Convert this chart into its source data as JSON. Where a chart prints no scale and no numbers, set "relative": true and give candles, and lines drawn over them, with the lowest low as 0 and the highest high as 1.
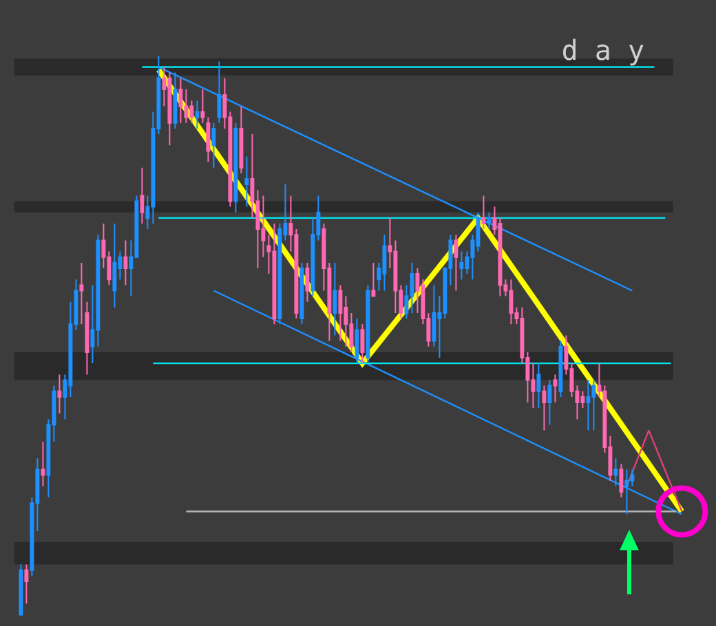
{
  "chart_data": {
    "type": "candlestick",
    "title": "d a y",
    "relative": true,
    "categories": [
      null,
      null,
      null,
      null,
      null,
      null,
      null,
      null,
      null,
      null,
      null,
      null,
      null,
      null,
      null,
      null,
      null,
      null,
      null,
      null,
      null,
      null,
      null,
      null,
      null,
      null,
      null,
      null,
      null,
      null,
      null,
      null,
      null,
      null,
      null,
      null,
      null,
      null,
      null,
      null,
      null,
      null,
      null,
      null,
      null,
      null,
      null,
      null,
      null,
      null,
      null,
      null,
      null,
      null,
      null,
      null,
      null,
      null,
      null,
      null,
      null,
      null,
      null,
      null,
      null,
      null,
      null,
      null,
      null,
      null,
      null,
      null,
      null,
      null,
      null,
      null,
      null,
      null,
      null,
      null,
      null,
      null,
      null,
      null,
      null,
      null,
      null,
      null,
      null,
      null,
      null,
      null,
      null,
      null,
      null,
      null,
      null,
      null,
      null,
      null,
      null,
      null,
      null,
      null,
      null,
      null,
      null,
      null,
      null,
      null,
      null,
      null,
      null,
      null,
      null,
      null,
      null,
      null,
      null,
      null,
      null
    ],
    "ohlc": [
      [
        0,
        0.09,
        0,
        0.08
      ],
      [
        0.08,
        0.09,
        0.02,
        0.06
      ],
      [
        0.08,
        0.21,
        0.07,
        0.2
      ],
      [
        0.2,
        0.28,
        0.15,
        0.26
      ],
      [
        0.26,
        0.31,
        0.23,
        0.25
      ],
      [
        0.25,
        0.35,
        0.21,
        0.34
      ],
      [
        0.34,
        0.41,
        0.31,
        0.4
      ],
      [
        0.4,
        0.43,
        0.36,
        0.39
      ],
      [
        0.39,
        0.43,
        0.35,
        0.42
      ],
      [
        0.41,
        0.56,
        0.39,
        0.52
      ],
      [
        0.52,
        0.6,
        0.51,
        0.58
      ],
      [
        0.59,
        0.63,
        0.52,
        0.58
      ],
      [
        0.54,
        0.56,
        0.43,
        0.47
      ],
      [
        0.48,
        0.59,
        0.45,
        0.51
      ],
      [
        0.51,
        0.68,
        0.48,
        0.67
      ],
      [
        0.67,
        0.7,
        0.62,
        0.64
      ],
      [
        0.64,
        0.65,
        0.59,
        0.6
      ],
      [
        0.58,
        0.7,
        0.55,
        0.63
      ],
      [
        0.62,
        0.65,
        0.6,
        0.64
      ],
      [
        0.64,
        0.67,
        0.59,
        0.62
      ],
      [
        0.62,
        0.67,
        0.57,
        0.64
      ],
      [
        0.64,
        0.75,
        0.64,
        0.74
      ],
      [
        0.75,
        0.8,
        0.7,
        0.72
      ],
      [
        0.71,
        0.75,
        0.69,
        0.73
      ],
      [
        0.73,
        0.9,
        0.7,
        0.87
      ],
      [
        0.87,
        1,
        0.86,
        0.96
      ],
      [
        0.96,
        0.98,
        0.91,
        0.94
      ],
      [
        0.96,
        0.97,
        0.84,
        0.88
      ],
      [
        0.88,
        0.97,
        0.87,
        0.94
      ],
      [
        0.94,
        0.96,
        0.88,
        0.91
      ],
      [
        0.91,
        0.94,
        0.88,
        0.89
      ],
      [
        0.91,
        0.92,
        0.88,
        0.89
      ],
      [
        0.89,
        0.92,
        0.87,
        0.9
      ],
      [
        0.9,
        0.94,
        0.88,
        0.89
      ],
      [
        0.88,
        0.89,
        0.81,
        0.83
      ],
      [
        0.84,
        0.88,
        0.8,
        0.87
      ],
      [
        0.89,
        0.99,
        0.88,
        0.93
      ],
      [
        0.93,
        0.96,
        0.87,
        0.89
      ],
      [
        0.89,
        0.9,
        0.73,
        0.74
      ],
      [
        0.74,
        0.88,
        0.72,
        0.87
      ],
      [
        0.87,
        0.91,
        0.79,
        0.8
      ],
      [
        0.77,
        0.82,
        0.73,
        0.78
      ],
      [
        0.78,
        0.86,
        0.71,
        0.74
      ],
      [
        0.74,
        0.76,
        0.62,
        0.69
      ],
      [
        0.69,
        0.75,
        0.64,
        0.67
      ],
      [
        0.66,
        0.68,
        0.61,
        0.65
      ],
      [
        0.65,
        0.7,
        0.52,
        0.53
      ],
      [
        0.53,
        0.7,
        0.52,
        0.69
      ],
      [
        0.68,
        0.77,
        0.67,
        0.7
      ],
      [
        0.7,
        0.75,
        0.65,
        0.68
      ],
      [
        0.68,
        0.69,
        0.53,
        0.54
      ],
      [
        0.53,
        0.63,
        0.52,
        0.62
      ],
      [
        0.62,
        0.63,
        0.56,
        0.58
      ],
      [
        0.58,
        0.71,
        0.57,
        0.68
      ],
      [
        0.68,
        0.75,
        0.67,
        0.72
      ],
      [
        0.69,
        0.7,
        0.58,
        0.62
      ],
      [
        0.62,
        0.63,
        0.49,
        0.54
      ],
      [
        0.54,
        0.63,
        0.5,
        0.58
      ],
      [
        0.58,
        0.59,
        0.49,
        0.54
      ],
      [
        0.55,
        0.57,
        0.48,
        0.52
      ],
      [
        0.52,
        0.54,
        0.47,
        0.48
      ],
      [
        0.46,
        0.53,
        0.45,
        0.51
      ],
      [
        0.51,
        0.52,
        0.45,
        0.47
      ],
      [
        0.46,
        0.59,
        0.45,
        0.58
      ],
      [
        0.58,
        0.63,
        0.57,
        0.57
      ],
      [
        0.6,
        0.63,
        0.58,
        0.62
      ],
      [
        0.61,
        0.68,
        0.58,
        0.66
      ],
      [
        0.66,
        0.71,
        0.62,
        0.65
      ],
      [
        0.65,
        0.67,
        0.54,
        0.58
      ],
      [
        0.58,
        0.59,
        0.53,
        0.54
      ],
      [
        0.54,
        0.59,
        0.53,
        0.57
      ],
      [
        0.57,
        0.63,
        0.54,
        0.61
      ],
      [
        0.61,
        0.62,
        0.54,
        0.58
      ],
      [
        0.59,
        0.6,
        0.52,
        0.53
      ],
      [
        0.53,
        0.54,
        0.48,
        0.49
      ],
      [
        0.49,
        0.59,
        0.48,
        0.54
      ],
      [
        0.53,
        0.57,
        0.46,
        0.54
      ],
      [
        0.54,
        0.62,
        0.53,
        0.62
      ],
      [
        0.62,
        0.68,
        0.59,
        0.67
      ],
      [
        0.67,
        0.68,
        0.58,
        0.64
      ],
      [
        0.62,
        0.65,
        0.6,
        0.63
      ],
      [
        0.62,
        0.65,
        0.61,
        0.64
      ],
      [
        0.64,
        0.68,
        0.6,
        0.67
      ],
      [
        0.66,
        0.72,
        0.65,
        0.71
      ],
      [
        0.71,
        0.75,
        0.69,
        0.7
      ],
      [
        0.7,
        0.72,
        0.69,
        0.71
      ],
      [
        0.71,
        0.73,
        0.68,
        0.69
      ],
      [
        0.7,
        0.71,
        0.57,
        0.59
      ],
      [
        0.59,
        0.6,
        0.57,
        0.58
      ],
      [
        0.58,
        0.6,
        0.52,
        0.54
      ],
      [
        0.54,
        0.55,
        0.52,
        0.53
      ],
      [
        0.53,
        0.55,
        0.45,
        0.46
      ],
      [
        0.46,
        0.47,
        0.38,
        0.42
      ],
      [
        0.42,
        0.45,
        0.37,
        0.4
      ],
      [
        0.4,
        0.45,
        0.37,
        0.43
      ],
      [
        0.4,
        0.41,
        0.33,
        0.38
      ],
      [
        0.38,
        0.42,
        0.34,
        0.41
      ],
      [
        0.42,
        0.43,
        0.38,
        0.41
      ],
      [
        0.4,
        0.49,
        0.39,
        0.48
      ],
      [
        0.48,
        0.5,
        0.43,
        0.44
      ],
      [
        0.44,
        0.45,
        0.39,
        0.4
      ],
      [
        0.4,
        0.41,
        0.35,
        0.38
      ],
      [
        0.39,
        0.4,
        0.37,
        0.38
      ],
      [
        0.38,
        0.42,
        0.33,
        0.39
      ],
      [
        0.39,
        0.42,
        0.33,
        0.41
      ],
      [
        0.41,
        0.45,
        0.39,
        0.4
      ],
      [
        0.4,
        0.41,
        0.29,
        0.3
      ],
      [
        0.3,
        0.32,
        0.24,
        0.25
      ],
      [
        0.25,
        0.28,
        0.23,
        0.26
      ],
      [
        0.26,
        0.27,
        0.21,
        0.22
      ],
      [
        0.23,
        0.26,
        0.18,
        0.24
      ],
      [
        0.24,
        0.26,
        0.23,
        0.25
      ],
      null,
      null,
      null,
      null,
      null,
      null,
      null,
      null,
      null
    ],
    "colors": [
      "#1e90ff",
      "#ff69b4",
      "#1e90ff",
      "#1e90ff",
      "#ff69b4",
      "#1e90ff",
      "#1e90ff",
      "#ff69b4",
      "#1e90ff",
      "#1e90ff",
      "#1e90ff",
      "#ff69b4",
      "#ff69b4",
      "#1e90ff",
      "#1e90ff",
      "#ff69b4",
      "#ff69b4",
      "#1e90ff",
      "#1e90ff",
      "#ff69b4",
      "#1e90ff",
      "#1e90ff",
      "#ff69b4",
      "#1e90ff",
      "#1e90ff",
      "#1e90ff",
      "#ff69b4",
      "#ff69b4",
      "#1e90ff",
      "#ff69b4",
      "#ff69b4",
      "#ff69b4",
      "#1e90ff",
      "#ff69b4",
      "#ff69b4",
      "#1e90ff",
      "#1e90ff",
      "#ff69b4",
      "#ff69b4",
      "#1e90ff",
      "#ff69b4",
      "#1e90ff",
      "#ff69b4",
      "#ff69b4",
      "#ff69b4",
      "#ff69b4",
      "#ff69b4",
      "#1e90ff",
      "#1e90ff",
      "#ff69b4",
      "#ff69b4",
      "#1e90ff",
      "#ff69b4",
      "#1e90ff",
      "#1e90ff",
      "#ff69b4",
      "#ff69b4",
      "#1e90ff",
      "#ff69b4",
      "#ff69b4",
      "#ff69b4",
      "#1e90ff",
      "#ff69b4",
      "#1e90ff",
      "#ff69b4",
      "#1e90ff",
      "#1e90ff",
      "#ff69b4",
      "#ff69b4",
      "#ff69b4",
      "#1e90ff",
      "#1e90ff",
      "#ff69b4",
      "#ff69b4",
      "#ff69b4",
      "#1e90ff",
      "#1e90ff",
      "#1e90ff",
      "#1e90ff",
      "#ff69b4",
      "#1e90ff",
      "#1e90ff",
      "#1e90ff",
      "#1e90ff",
      "#ff69b4",
      "#1e90ff",
      "#ff69b4",
      "#ff69b4",
      "#ff69b4",
      "#ff69b4",
      "#ff69b4",
      "#ff69b4",
      "#ff69b4",
      "#ff69b4",
      "#1e90ff",
      "#ff69b4",
      "#1e90ff",
      "#ff69b4",
      "#1e90ff",
      "#ff69b4",
      "#ff69b4",
      "#ff69b4",
      "#ff69b4",
      "#1e90ff",
      "#1e90ff",
      "#ff69b4",
      "#ff69b4",
      "#ff69b4",
      "#1e90ff",
      "#ff69b4",
      "#1e90ff",
      "#1e90ff",
      null,
      null,
      null,
      null,
      null,
      null,
      null,
      null,
      null
    ],
    "series": [
      {
        "type": "line",
        "color": "#ffff00",
        "values": [
          null,
          null,
          null,
          null,
          null,
          null,
          null,
          null,
          null,
          null,
          null,
          null,
          null,
          null,
          null,
          null,
          null,
          null,
          null,
          null,
          null,
          null,
          null,
          null,
          null,
          0.975,
          null,
          null,
          null,
          null,
          null,
          null,
          null,
          null,
          null,
          null,
          null,
          null,
          null,
          null,
          null,
          null,
          null,
          null,
          null,
          null,
          null,
          null,
          null,
          null,
          null,
          null,
          null,
          null,
          null,
          null,
          null,
          null,
          null,
          null,
          null,
          null,
          0.45,
          null,
          null,
          null,
          null,
          null,
          null,
          null,
          null,
          null,
          null,
          null,
          null,
          null,
          null,
          null,
          null,
          null,
          null,
          null,
          null,
          0.71,
          null,
          null,
          null,
          null,
          null,
          null,
          null,
          null,
          null,
          null,
          null,
          null,
          null,
          null,
          null,
          null,
          null,
          null,
          null,
          null,
          null,
          null,
          null,
          null,
          null,
          null,
          null,
          null,
          null,
          null,
          null,
          null,
          null,
          null,
          null,
          null,
          0.185
        ]
      },
      {
        "type": "line",
        "color": "#1e90ff",
        "values": [
          null,
          null,
          null,
          null,
          null,
          null,
          null,
          null,
          null,
          null,
          null,
          null,
          null,
          null,
          null,
          null,
          null,
          null,
          null,
          null,
          null,
          null,
          null,
          null,
          null,
          0.98,
          null,
          null,
          null,
          null,
          null,
          null,
          null,
          null,
          null,
          null,
          null,
          null,
          null,
          null,
          null,
          null,
          null,
          null,
          null,
          null,
          null,
          null,
          null,
          null,
          null,
          null,
          null,
          null,
          null,
          null,
          null,
          null,
          null,
          null,
          null,
          null,
          null,
          null,
          null,
          null,
          null,
          null,
          null,
          null,
          null,
          null,
          null,
          null,
          null,
          null,
          null,
          null,
          null,
          null,
          null,
          null,
          null,
          null,
          null,
          null,
          null,
          null,
          null,
          null,
          null,
          null,
          null,
          null,
          null,
          null,
          null,
          null,
          null,
          null,
          null,
          null,
          null,
          null,
          null,
          null,
          null,
          null,
          null,
          null,
          null,
          0.58,
          null,
          null,
          null,
          null,
          null,
          null,
          null,
          null,
          null
        ]
      },
      {
        "type": "line",
        "color": "#1e90ff",
        "values": [
          null,
          null,
          null,
          null,
          null,
          null,
          null,
          null,
          null,
          null,
          null,
          null,
          null,
          null,
          null,
          null,
          null,
          null,
          null,
          null,
          null,
          null,
          null,
          null,
          null,
          null,
          null,
          null,
          null,
          null,
          null,
          null,
          null,
          null,
          null,
          0.58,
          null,
          null,
          null,
          null,
          null,
          null,
          null,
          null,
          null,
          null,
          null,
          null,
          null,
          null,
          null,
          null,
          null,
          null,
          null,
          null,
          null,
          null,
          null,
          null,
          null,
          null,
          null,
          null,
          null,
          null,
          null,
          null,
          null,
          null,
          null,
          null,
          null,
          null,
          null,
          null,
          null,
          null,
          null,
          null,
          null,
          null,
          null,
          null,
          null,
          null,
          null,
          null,
          null,
          null,
          null,
          null,
          null,
          null,
          null,
          null,
          null,
          null,
          null,
          null,
          null,
          null,
          null,
          null,
          null,
          null,
          null,
          null,
          null,
          null,
          null,
          null,
          null,
          null,
          null,
          null,
          null,
          null,
          null,
          null,
          0.18
        ]
      },
      {
        "type": "line",
        "color": "#00e5ee",
        "values": [
          null,
          null,
          null,
          null,
          null,
          null,
          null,
          null,
          null,
          null,
          null,
          null,
          null,
          null,
          null,
          null,
          null,
          null,
          null,
          null,
          null,
          null,
          0.98,
          null,
          null,
          null,
          null,
          null,
          null,
          null,
          null,
          null,
          null,
          null,
          null,
          null,
          null,
          null,
          null,
          null,
          null,
          null,
          null,
          null,
          null,
          null,
          null,
          null,
          null,
          null,
          null,
          null,
          null,
          null,
          null,
          null,
          null,
          null,
          null,
          null,
          null,
          null,
          null,
          null,
          null,
          null,
          null,
          null,
          null,
          null,
          null,
          null,
          null,
          null,
          null,
          null,
          null,
          null,
          null,
          null,
          null,
          null,
          null,
          null,
          null,
          null,
          null,
          null,
          null,
          null,
          null,
          null,
          null,
          null,
          null,
          null,
          null,
          null,
          null,
          null,
          null,
          null,
          null,
          null,
          null,
          null,
          null,
          null,
          null,
          null,
          null,
          null,
          null,
          null,
          null,
          0.98,
          null,
          null,
          null,
          null,
          null
        ]
      },
      {
        "type": "line",
        "color": "#00e5ee",
        "values": [
          null,
          null,
          null,
          null,
          null,
          null,
          null,
          null,
          null,
          null,
          null,
          null,
          null,
          null,
          null,
          null,
          null,
          null,
          null,
          null,
          null,
          null,
          null,
          null,
          null,
          0.71,
          null,
          null,
          null,
          null,
          null,
          null,
          null,
          null,
          null,
          null,
          null,
          null,
          null,
          null,
          null,
          null,
          null,
          null,
          null,
          null,
          null,
          null,
          null,
          null,
          null,
          null,
          null,
          null,
          null,
          null,
          null,
          null,
          null,
          null,
          null,
          null,
          null,
          null,
          null,
          null,
          null,
          null,
          null,
          null,
          null,
          null,
          null,
          null,
          null,
          null,
          null,
          null,
          null,
          null,
          null,
          null,
          null,
          null,
          null,
          null,
          null,
          null,
          null,
          null,
          null,
          null,
          null,
          null,
          null,
          null,
          null,
          null,
          null,
          null,
          null,
          null,
          null,
          null,
          null,
          null,
          null,
          null,
          null,
          null,
          null,
          null,
          null,
          null,
          null,
          null,
          null,
          0.71,
          null,
          null,
          null
        ]
      },
      {
        "type": "line",
        "color": "#00e5ee",
        "values": [
          null,
          null,
          null,
          null,
          null,
          null,
          null,
          null,
          null,
          null,
          null,
          null,
          null,
          null,
          null,
          null,
          null,
          null,
          null,
          null,
          null,
          null,
          null,
          null,
          0.45,
          null,
          null,
          null,
          null,
          null,
          null,
          null,
          null,
          null,
          null,
          null,
          null,
          null,
          null,
          null,
          null,
          null,
          null,
          null,
          null,
          null,
          null,
          null,
          null,
          null,
          null,
          null,
          null,
          null,
          null,
          null,
          null,
          null,
          null,
          null,
          null,
          null,
          null,
          null,
          null,
          null,
          null,
          null,
          null,
          null,
          null,
          null,
          null,
          null,
          null,
          null,
          null,
          null,
          null,
          null,
          null,
          null,
          null,
          null,
          null,
          null,
          null,
          null,
          null,
          null,
          null,
          null,
          null,
          null,
          null,
          null,
          null,
          null,
          null,
          null,
          null,
          null,
          null,
          null,
          null,
          null,
          null,
          null,
          null,
          null,
          null,
          null,
          null,
          null,
          null,
          null,
          null,
          null,
          0.45,
          null,
          null
        ]
      },
      {
        "type": "line",
        "color": "#b4b4b4",
        "values": [
          null,
          null,
          null,
          null,
          null,
          null,
          null,
          null,
          null,
          null,
          null,
          null,
          null,
          null,
          null,
          null,
          null,
          null,
          null,
          null,
          null,
          null,
          null,
          null,
          null,
          null,
          null,
          null,
          null,
          null,
          0.185,
          null,
          null,
          null,
          null,
          null,
          null,
          null,
          null,
          null,
          null,
          null,
          null,
          null,
          null,
          null,
          null,
          null,
          null,
          null,
          null,
          null,
          null,
          null,
          null,
          null,
          null,
          null,
          null,
          null,
          null,
          null,
          null,
          null,
          null,
          null,
          null,
          null,
          null,
          null,
          null,
          null,
          null,
          null,
          null,
          null,
          null,
          null,
          null,
          null,
          null,
          null,
          null,
          null,
          null,
          null,
          null,
          null,
          null,
          null,
          null,
          null,
          null,
          null,
          null,
          null,
          null,
          null,
          null,
          null,
          null,
          null,
          null,
          null,
          null,
          null,
          null,
          null,
          null,
          null,
          null,
          null,
          null,
          null,
          null,
          null,
          null,
          null,
          null,
          0.185,
          null
        ]
      },
      {
        "type": "line",
        "color": "#e0407a",
        "values": [
          null,
          null,
          null,
          null,
          null,
          null,
          null,
          null,
          null,
          null,
          null,
          null,
          null,
          null,
          null,
          null,
          null,
          null,
          null,
          null,
          null,
          null,
          null,
          null,
          null,
          null,
          null,
          null,
          null,
          null,
          null,
          null,
          null,
          null,
          null,
          null,
          null,
          null,
          null,
          null,
          null,
          null,
          null,
          null,
          null,
          null,
          null,
          null,
          null,
          null,
          null,
          null,
          null,
          null,
          null,
          null,
          null,
          null,
          null,
          null,
          null,
          null,
          null,
          null,
          null,
          null,
          null,
          null,
          null,
          null,
          null,
          null,
          null,
          null,
          null,
          null,
          null,
          null,
          null,
          null,
          null,
          null,
          null,
          null,
          null,
          null,
          null,
          null,
          null,
          null,
          null,
          null,
          null,
          null,
          null,
          null,
          null,
          null,
          null,
          null,
          null,
          null,
          null,
          null,
          null,
          null,
          null,
          null,
          null,
          null,
          0.23,
          null,
          null,
          null,
          0.33,
          null,
          null,
          null,
          null,
          null,
          0.185
        ]
      },
      {
        "type": "scatter",
        "color": "#ff00cc",
        "marker": "circle",
        "values": [
          null,
          null,
          null,
          null,
          null,
          null,
          null,
          null,
          null,
          null,
          null,
          null,
          null,
          null,
          null,
          null,
          null,
          null,
          null,
          null,
          null,
          null,
          null,
          null,
          null,
          null,
          null,
          null,
          null,
          null,
          null,
          null,
          null,
          null,
          null,
          null,
          null,
          null,
          null,
          null,
          null,
          null,
          null,
          null,
          null,
          null,
          null,
          null,
          null,
          null,
          null,
          null,
          null,
          null,
          null,
          null,
          null,
          null,
          null,
          null,
          null,
          null,
          null,
          null,
          null,
          null,
          null,
          null,
          null,
          null,
          null,
          null,
          null,
          null,
          null,
          null,
          null,
          null,
          null,
          null,
          null,
          null,
          null,
          null,
          null,
          null,
          null,
          null,
          null,
          null,
          null,
          null,
          null,
          null,
          null,
          null,
          null,
          null,
          null,
          null,
          null,
          null,
          null,
          null,
          null,
          null,
          null,
          null,
          null,
          null,
          null,
          null,
          null,
          null,
          null,
          null,
          null,
          null,
          null,
          null,
          0.185
        ]
      }
    ],
    "bands": [
      {
        "axis": "y",
        "from": 0.965,
        "to": 0.995,
        "color": "#2a2a2a"
      },
      {
        "axis": "y",
        "from": 0.72,
        "to": 0.74,
        "color": "#2a2a2a"
      },
      {
        "axis": "y",
        "from": 0.42,
        "to": 0.47,
        "color": "#2a2a2a"
      },
      {
        "axis": "y",
        "from": 0.09,
        "to": 0.13,
        "color": "#2a2a2a"
      }
    ]
  }
}
